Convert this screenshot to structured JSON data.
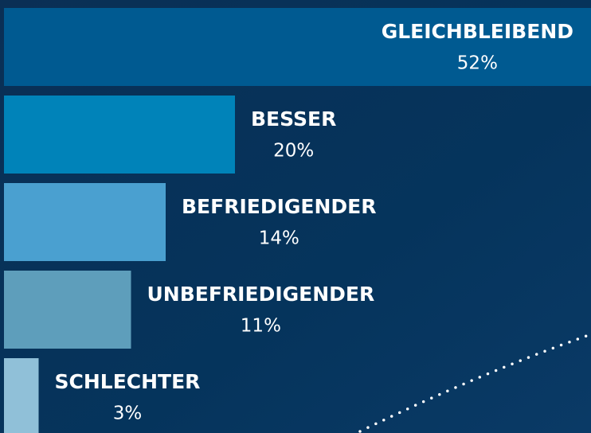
{
  "chart_data": {
    "type": "bar",
    "orientation": "horizontal",
    "categories": [
      "GLEICHBLEIBEND",
      "BESSER",
      "BEFRIEDIGENDER",
      "UNBEFRIEDIGENDER",
      "SCHLECHTER"
    ],
    "values": [
      52,
      20,
      14,
      11,
      3
    ],
    "value_labels": [
      "52%",
      "20%",
      "14%",
      "11%",
      "3%"
    ],
    "colors": [
      "#005a91",
      "#0083b9",
      "#4aa0d0",
      "#5e9ebb",
      "#90c0d8"
    ]
  }
}
